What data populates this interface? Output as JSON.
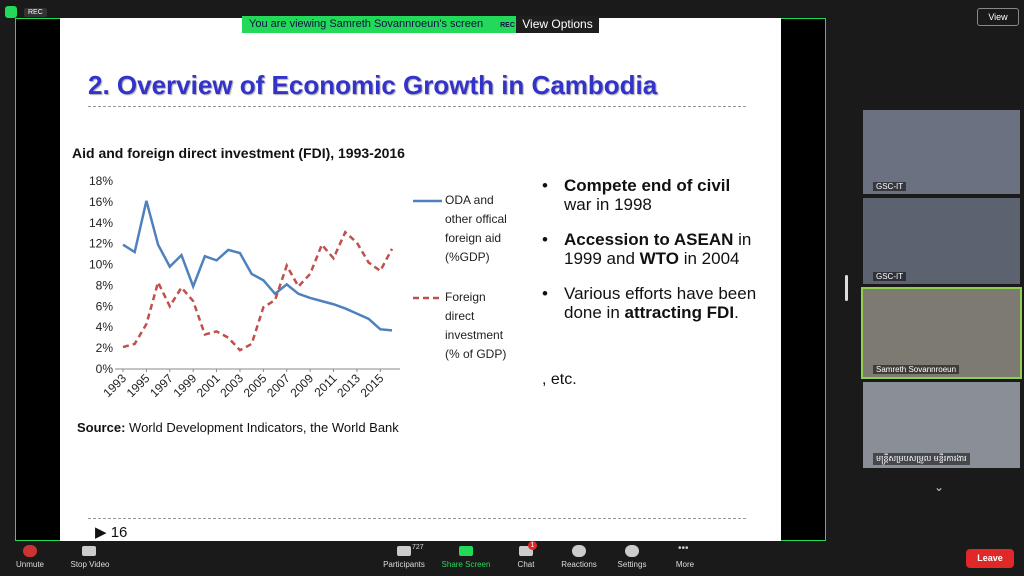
{
  "zoom": {
    "rec_top": "REC",
    "banner": "You are viewing Samreth Sovannroeun's screen",
    "banner_rec": "REC",
    "view_options": "View Options",
    "view": "View",
    "participants": [
      "GSC-IT",
      "GSC-IT",
      "Samreth Sovannroeun",
      "មន្ត្រីសម្របសម្រួល មន្ទីរការងារ"
    ],
    "toolbar": {
      "unmute": "Unmute",
      "stop_video": "Stop Video",
      "participant_count": "727",
      "participants": "Participants",
      "share_screen": "Share Screen",
      "chat_badge": "1",
      "chat": "Chat",
      "reactions": "Reactions",
      "settings": "Settings",
      "more": "More",
      "leave": "Leave"
    }
  },
  "slide": {
    "title": "2. Overview of Economic Growth in Cambodia",
    "subtitle": "Aid and foreign direct investment (FDI), 1993-2016",
    "chart_data": {
      "type": "line",
      "x": [
        1993,
        1994,
        1995,
        1996,
        1997,
        1998,
        1999,
        2000,
        2001,
        2002,
        2003,
        2004,
        2005,
        2006,
        2007,
        2008,
        2009,
        2010,
        2011,
        2012,
        2013,
        2014,
        2015,
        2016
      ],
      "series": [
        {
          "name": "ODA and other offical foreign aid (%GDP)",
          "color": "#4f81bd",
          "dashed": false,
          "values": [
            11.9,
            11.2,
            16.1,
            11.9,
            9.8,
            10.9,
            7.9,
            10.8,
            10.4,
            11.4,
            11.1,
            9.1,
            8.5,
            7.2,
            8.1,
            7.2,
            6.8,
            6.5,
            6.2,
            5.8,
            5.3,
            4.8,
            3.8,
            3.7
          ]
        },
        {
          "name": "Foreign direct investment (% of GDP)",
          "color": "#c0504d",
          "dashed": true,
          "values": [
            2.1,
            2.4,
            4.3,
            8.3,
            6.0,
            7.8,
            6.5,
            3.3,
            3.6,
            3.0,
            1.8,
            2.4,
            5.9,
            6.6,
            9.9,
            7.9,
            9.1,
            11.9,
            10.6,
            13.1,
            12.1,
            10.2,
            9.4,
            11.5
          ]
        }
      ],
      "xlim": [
        1993,
        2016
      ],
      "xticks": [
        1993,
        1995,
        1997,
        1999,
        2001,
        2003,
        2005,
        2007,
        2009,
        2011,
        2013,
        2015
      ],
      "ylim": [
        0,
        18
      ],
      "yticks": [
        {
          "value": 0,
          "label": "0%"
        },
        {
          "value": 2,
          "label": "2%"
        },
        {
          "value": 4,
          "label": "4%"
        },
        {
          "value": 6,
          "label": "6%"
        },
        {
          "value": 8,
          "label": "8%"
        },
        {
          "value": 10,
          "label": "10%"
        },
        {
          "value": 12,
          "label": "12%"
        },
        {
          "value": 14,
          "label": "14%"
        },
        {
          "value": 16,
          "label": "16%"
        },
        {
          "value": 18,
          "label": "18%"
        }
      ]
    },
    "source_label": "Source:",
    "source_text": "World Development Indicators, the World Bank",
    "bullets": [
      [
        {
          "text": "Compete end of civil",
          "bold": true
        },
        {
          "text": " war in 1998",
          "bold": false
        }
      ],
      [
        {
          "text": "Accession to ASEAN",
          "bold": true
        },
        {
          "text": " in 1999 and ",
          "bold": false
        },
        {
          "text": "WTO",
          "bold": true
        },
        {
          "text": " in 2004",
          "bold": false
        }
      ],
      [
        {
          "text": "Various efforts have been done in ",
          "bold": false
        },
        {
          "text": "attracting FDI",
          "bold": true
        },
        {
          "text": ".",
          "bold": false
        }
      ]
    ],
    "etc": ", etc.",
    "page_number": "16"
  }
}
